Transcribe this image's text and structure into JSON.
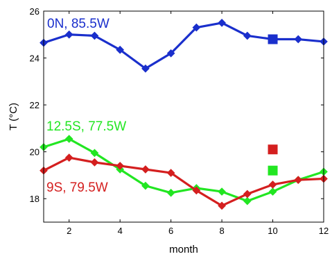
{
  "chart_data": {
    "type": "line",
    "xlabel": "month",
    "ylabel": "T (°C)",
    "xlim": [
      1,
      12
    ],
    "ylim": [
      17,
      26
    ],
    "x_ticks": [
      2,
      4,
      6,
      8,
      10,
      12
    ],
    "y_ticks": [
      18,
      20,
      22,
      24,
      26
    ],
    "grid": false,
    "x": [
      1,
      2,
      3,
      4,
      5,
      6,
      7,
      8,
      9,
      10,
      11,
      12
    ],
    "series": [
      {
        "name": "0N, 85.5W",
        "color": "#1a2fcc",
        "values": [
          24.65,
          25.0,
          24.95,
          24.35,
          23.55,
          24.2,
          25.3,
          25.5,
          24.95,
          24.8,
          24.8,
          24.7
        ],
        "extra_point": {
          "x": 10,
          "y": 24.8
        }
      },
      {
        "name": "12.5S, 77.5W",
        "color": "#22e622",
        "values": [
          20.2,
          20.55,
          19.95,
          19.25,
          18.55,
          18.25,
          18.45,
          18.3,
          17.9,
          18.3,
          18.8,
          19.15
        ],
        "extra_point": {
          "x": 10,
          "y": 19.2
        }
      },
      {
        "name": "9S, 79.5W",
        "color": "#d41f1f",
        "values": [
          19.2,
          19.75,
          19.55,
          19.4,
          19.25,
          19.1,
          18.35,
          17.7,
          18.2,
          18.6,
          18.8,
          18.85
        ],
        "extra_point": {
          "x": 10,
          "y": 20.1
        }
      }
    ]
  }
}
